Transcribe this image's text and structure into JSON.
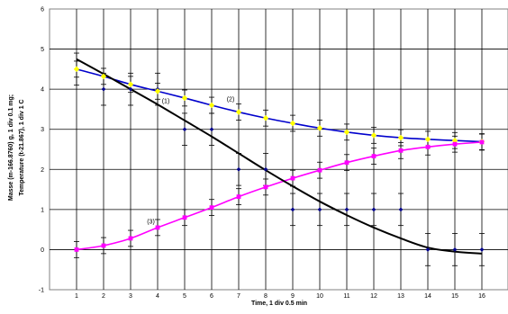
{
  "chart_data": {
    "type": "scatter",
    "title": "",
    "xlabel": "Time, 1 div 0.5 min",
    "ylabel_line1": "Masse (m-166.8760) g, 1 div 0.1 mg;",
    "ylabel_line2": "Temperature (t-21.867), 1 div 1 C",
    "xlim": [
      0,
      17
    ],
    "ylim": [
      -1,
      6
    ],
    "x_ticks": [
      1,
      2,
      3,
      4,
      5,
      6,
      7,
      8,
      9,
      10,
      11,
      12,
      13,
      14,
      15,
      16
    ],
    "y_ticks": [
      -1,
      0,
      1,
      2,
      3,
      4,
      5,
      6
    ],
    "grid": true,
    "legend": "none",
    "annotations": [
      {
        "text": "(1)",
        "x": 4.3,
        "y": 3.65
      },
      {
        "text": "(2)",
        "x": 6.7,
        "y": 3.7
      },
      {
        "text": "(3)",
        "x": 3.75,
        "y": 0.65
      }
    ],
    "series": [
      {
        "color": "#00008b",
        "marker": "diamond",
        "x": [
          1,
          2,
          3,
          4,
          5,
          6,
          7,
          8,
          9,
          10,
          11,
          12,
          13,
          14,
          15,
          16
        ],
        "y": [
          4.5,
          4.0,
          4.0,
          4.0,
          3.0,
          3.0,
          2.0,
          2.0,
          1.0,
          1.0,
          1.0,
          1.0,
          1.0,
          0.0,
          0.0,
          0.0
        ],
        "err": [
          0.4,
          0.4,
          0.4,
          0.4,
          0.4,
          0.4,
          0.4,
          0.4,
          0.4,
          0.4,
          0.4,
          0.4,
          0.4,
          0.4,
          0.4,
          0.4
        ]
      },
      {
        "color": "#ffff00",
        "marker": "diamond",
        "line_color": "#0000cc",
        "x": [
          1,
          2,
          3,
          4,
          5,
          6,
          7,
          8,
          9,
          10,
          11,
          12,
          13,
          14,
          15,
          16
        ],
        "y": [
          4.5,
          4.32,
          4.12,
          3.95,
          3.78,
          3.6,
          3.43,
          3.28,
          3.15,
          3.03,
          2.93,
          2.85,
          2.79,
          2.75,
          2.72,
          2.69
        ],
        "err": [
          0.2,
          0.2,
          0.2,
          0.2,
          0.2,
          0.2,
          0.2,
          0.2,
          0.2,
          0.2,
          0.2,
          0.2,
          0.2,
          0.2,
          0.2,
          0.2
        ]
      },
      {
        "color": "#ff00ff",
        "marker": "square",
        "line_color": "#ff00ff",
        "x": [
          1,
          2,
          3,
          4,
          5,
          6,
          7,
          8,
          9,
          10,
          11,
          12,
          13,
          14,
          15,
          16
        ],
        "y": [
          0.0,
          0.1,
          0.28,
          0.55,
          0.8,
          1.05,
          1.32,
          1.56,
          1.78,
          1.98,
          2.17,
          2.33,
          2.47,
          2.56,
          2.63,
          2.68
        ],
        "err": [
          0.2,
          0.2,
          0.2,
          0.2,
          0.2,
          0.2,
          0.2,
          0.2,
          0.2,
          0.2,
          0.2,
          0.2,
          0.2,
          0.2,
          0.2,
          0.2
        ]
      },
      {
        "color": "#000000",
        "marker": "none",
        "line_color": "#000000",
        "x": [
          1,
          2,
          3,
          4,
          5,
          6,
          7,
          8,
          9,
          10,
          11,
          12,
          13,
          14,
          15,
          16
        ],
        "y": [
          4.75,
          4.38,
          4.0,
          3.62,
          3.22,
          2.82,
          2.4,
          1.98,
          1.58,
          1.2,
          0.86,
          0.55,
          0.28,
          0.05,
          -0.05,
          -0.1
        ]
      }
    ]
  }
}
